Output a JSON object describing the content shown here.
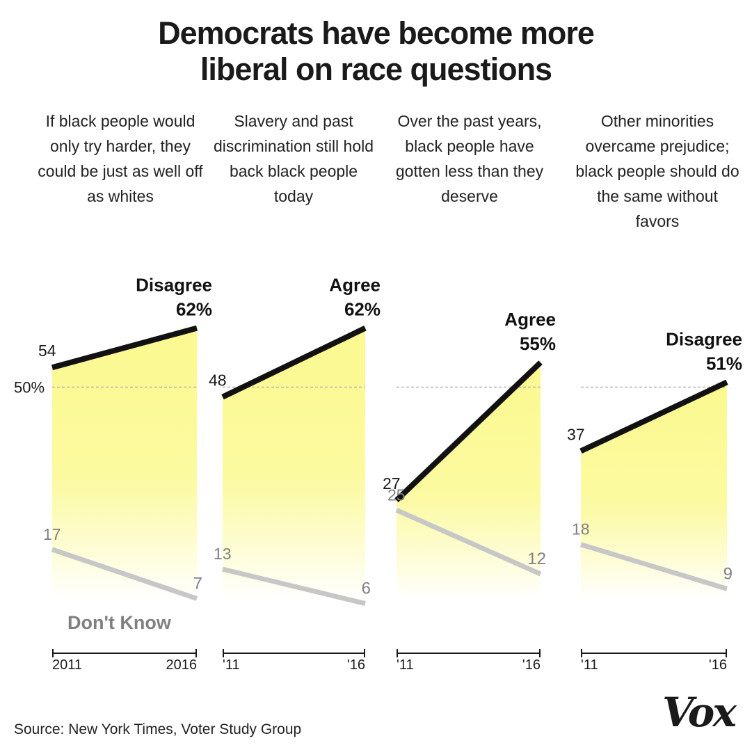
{
  "title_lines": [
    "Democrats have become more",
    "liberal on race questions"
  ],
  "source": "Source: New York Times, Voter Study Group",
  "logo": "Vox",
  "reference_label": "50%",
  "dont_know_label": "Don't Know",
  "colors": {
    "main_line": "#111111",
    "dk_line": "#c7c7c7",
    "fill_top": "#fbf98f",
    "fill_bottom": "#ffffff",
    "reference": "#b3b3b3",
    "dk_text": "#808080"
  },
  "chart_data": [
    {
      "type": "line",
      "question": "If black people would only try harder, they could be just as well off as whites",
      "x": [
        "2011",
        "2016"
      ],
      "series": [
        {
          "name": "Disagree",
          "values": [
            54,
            62
          ]
        },
        {
          "name": "Don't Know",
          "values": [
            17,
            7
          ]
        }
      ],
      "start_label": "54",
      "end_label": [
        "Disagree",
        "62%"
      ],
      "dk_start_label": "17",
      "dk_end_label": "7",
      "reference_line": 50
    },
    {
      "type": "line",
      "question": "Slavery and past discrimination still hold back black people today",
      "x": [
        "'11",
        "'16"
      ],
      "series": [
        {
          "name": "Agree",
          "values": [
            48,
            62
          ]
        },
        {
          "name": "Don't Know",
          "values": [
            13,
            6
          ]
        }
      ],
      "start_label": "48",
      "end_label": [
        "Agree",
        "62%"
      ],
      "dk_start_label": "13",
      "dk_end_label": "6",
      "reference_line": 50
    },
    {
      "type": "line",
      "question": "Over the past years, black people have gotten less than they deserve",
      "x": [
        "'11",
        "'16"
      ],
      "series": [
        {
          "name": "Agree",
          "values": [
            27,
            55
          ]
        },
        {
          "name": "Don't Know",
          "values": [
            25,
            12
          ]
        }
      ],
      "start_label": "27",
      "end_label": [
        "Agree",
        "55%"
      ],
      "dk_start_label": "25",
      "dk_end_label": "12",
      "reference_line": 50
    },
    {
      "type": "line",
      "question": "Other minorities overcame prejudice; black people should do the same without favors",
      "x": [
        "'11",
        "'16"
      ],
      "series": [
        {
          "name": "Disagree",
          "values": [
            37,
            51
          ]
        },
        {
          "name": "Don't Know",
          "values": [
            18,
            9
          ]
        }
      ],
      "start_label": "37",
      "end_label": [
        "Disagree",
        "51%"
      ],
      "dk_start_label": "18",
      "dk_end_label": "9",
      "reference_line": 50
    }
  ]
}
